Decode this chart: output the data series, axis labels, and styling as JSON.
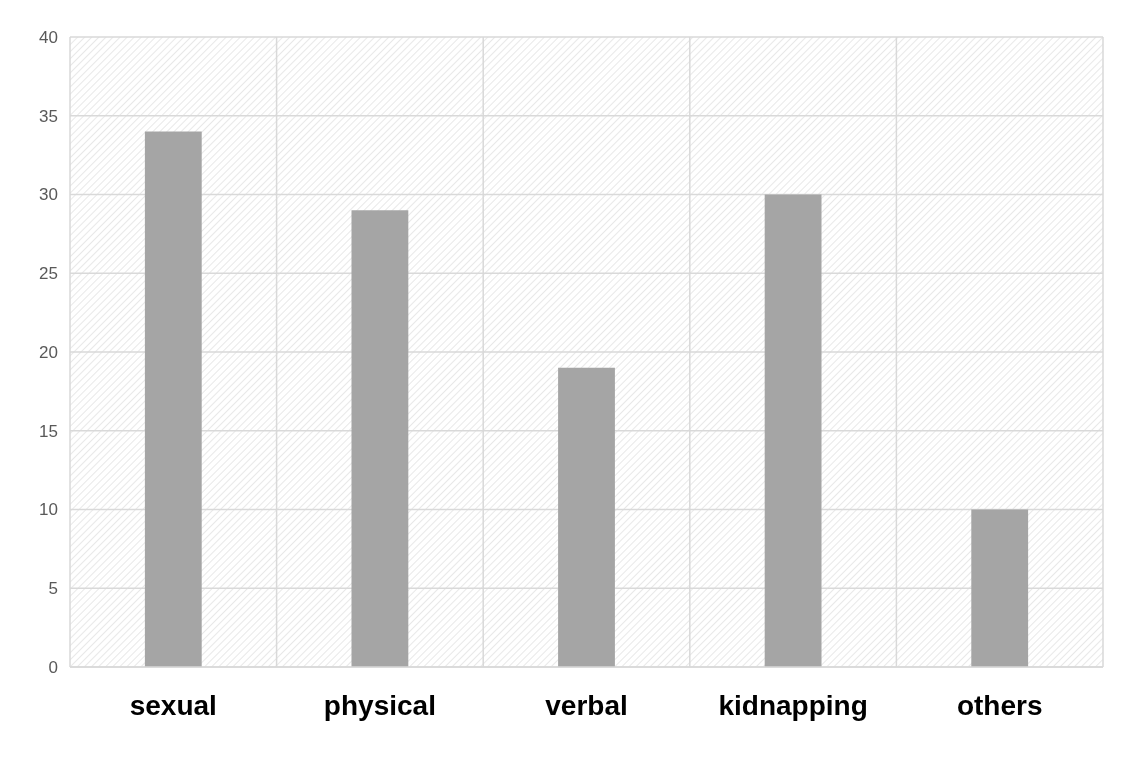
{
  "chart_data": {
    "type": "bar",
    "categories": [
      "sexual",
      "physical",
      "verbal",
      "kidnapping",
      "others"
    ],
    "values": [
      34,
      29,
      19,
      30,
      10
    ],
    "color": "#a5a5a5",
    "ylim": [
      0,
      40
    ],
    "yticks": [
      0,
      5,
      10,
      15,
      20,
      25,
      30,
      35,
      40
    ],
    "grid": true
  }
}
